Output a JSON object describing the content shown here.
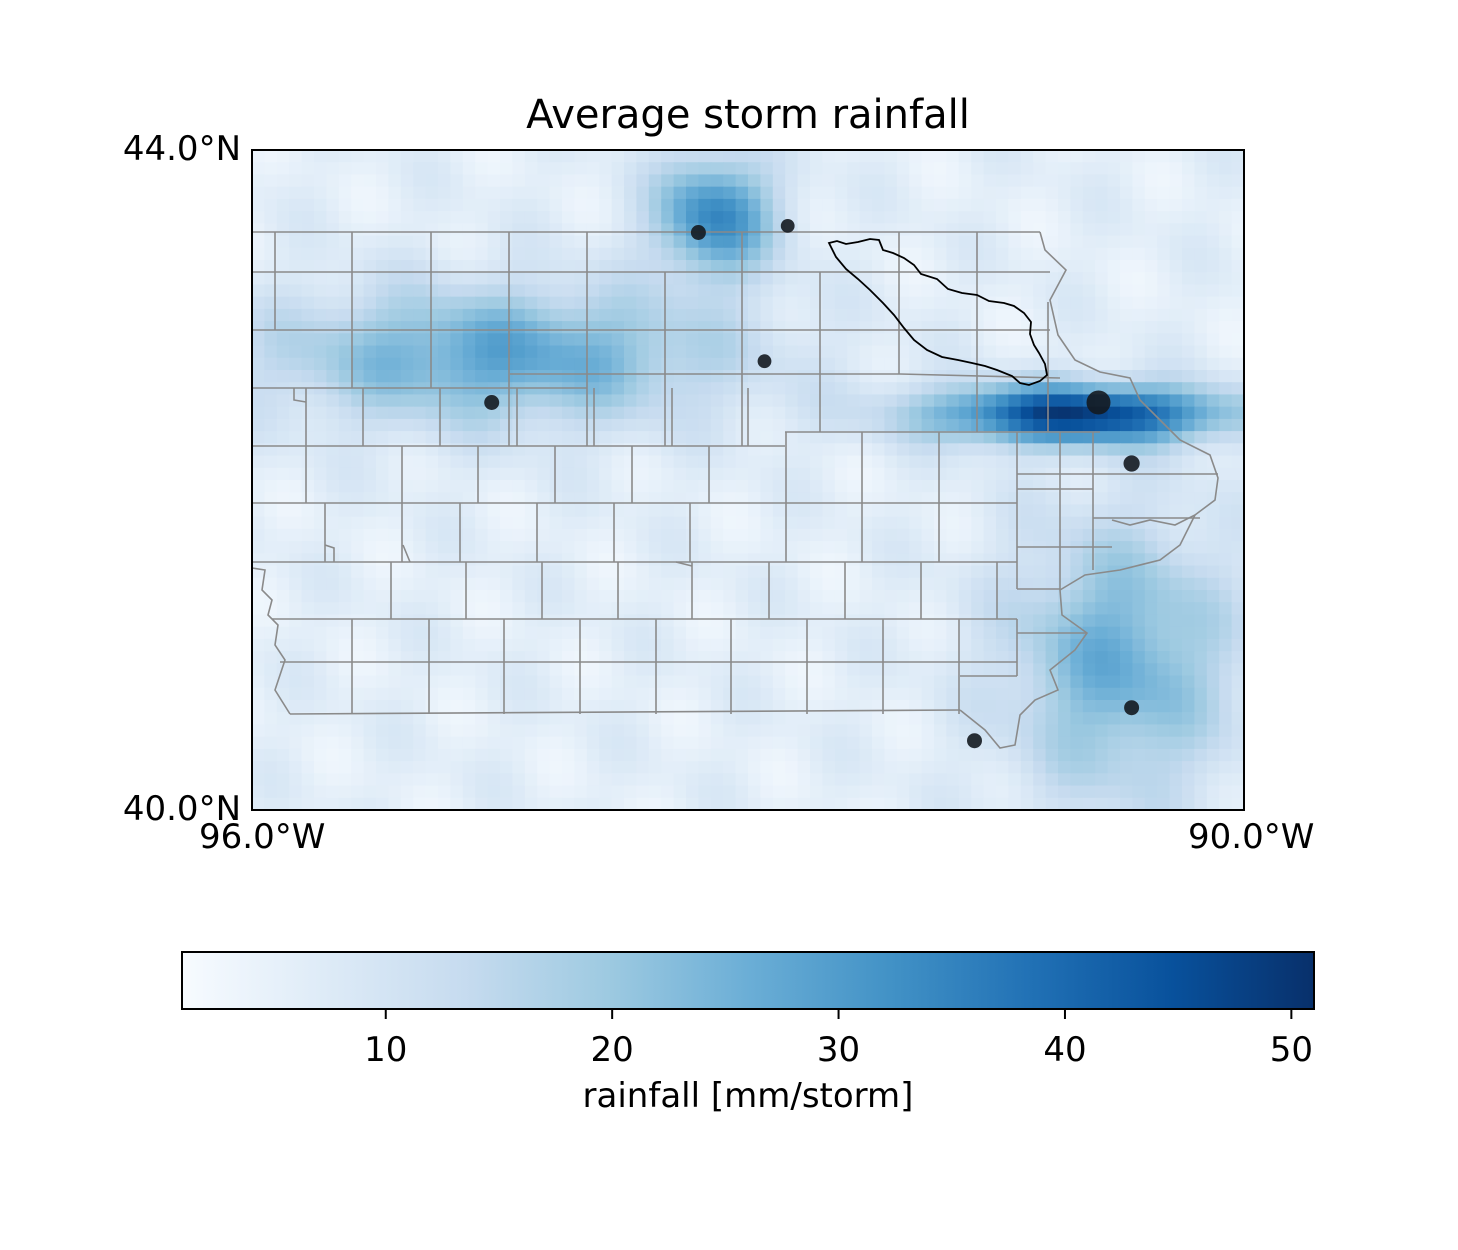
{
  "title": "Average storm rainfall",
  "map": {
    "lat_range": [
      40.0,
      44.0
    ],
    "lon_range": [
      -96.0,
      -90.0
    ],
    "lat_tick_labels": [
      "44.0°N",
      "40.0°N"
    ],
    "lon_tick_labels": [
      "96.0°W",
      "90.0°W"
    ],
    "field": "rainfall",
    "colormap": "Blues",
    "features": [
      "county boundaries",
      "state boundary",
      "watershed outline",
      "station markers"
    ]
  },
  "colorbar": {
    "label": "rainfall [mm/storm]",
    "min": 1,
    "max": 51,
    "ticks": [
      "10",
      "20",
      "30",
      "40",
      "50"
    ],
    "tick_values": [
      10,
      20,
      30,
      40,
      50
    ],
    "colors": [
      "#f7fbff",
      "#deebf7",
      "#c6dbef",
      "#9ecae1",
      "#6baed6",
      "#4292c6",
      "#2171b5",
      "#08519c",
      "#08306b"
    ]
  },
  "chart_data": {
    "type": "heatmap",
    "title": "Average storm rainfall",
    "xlabel": "",
    "ylabel": "",
    "xlim": [
      -96.0,
      -90.0
    ],
    "ylim": [
      40.0,
      44.0
    ],
    "value_label": "rainfall [mm/storm]",
    "value_range": [
      1,
      51
    ],
    "rain_bands": [
      {
        "lon": [
          -96.0,
          -93.0
        ],
        "lat": [
          42.3,
          43.2
        ],
        "peak": 28
      },
      {
        "lon": [
          -93.6,
          -92.8
        ],
        "lat": [
          43.2,
          44.0
        ],
        "peak": 34
      },
      {
        "lon": [
          -92.0,
          -90.0
        ],
        "lat": [
          42.2,
          42.6
        ],
        "peak": 48
      },
      {
        "lon": [
          -91.5,
          -90.0
        ],
        "lat": [
          40.0,
          41.8
        ],
        "peak": 26
      }
    ],
    "stations": [
      {
        "lon": -93.3,
        "lat": 43.5,
        "value": 30
      },
      {
        "lon": -92.76,
        "lat": 43.54,
        "value": 28
      },
      {
        "lon": -92.9,
        "lat": 42.72,
        "value": 28
      },
      {
        "lon": -94.55,
        "lat": 42.47,
        "value": 30
      },
      {
        "lon": -90.88,
        "lat": 42.47,
        "value": 45
      },
      {
        "lon": -90.68,
        "lat": 42.1,
        "value": 32
      },
      {
        "lon": -90.68,
        "lat": 40.62,
        "value": 30
      },
      {
        "lon": -91.63,
        "lat": 40.42,
        "value": 30
      }
    ]
  }
}
